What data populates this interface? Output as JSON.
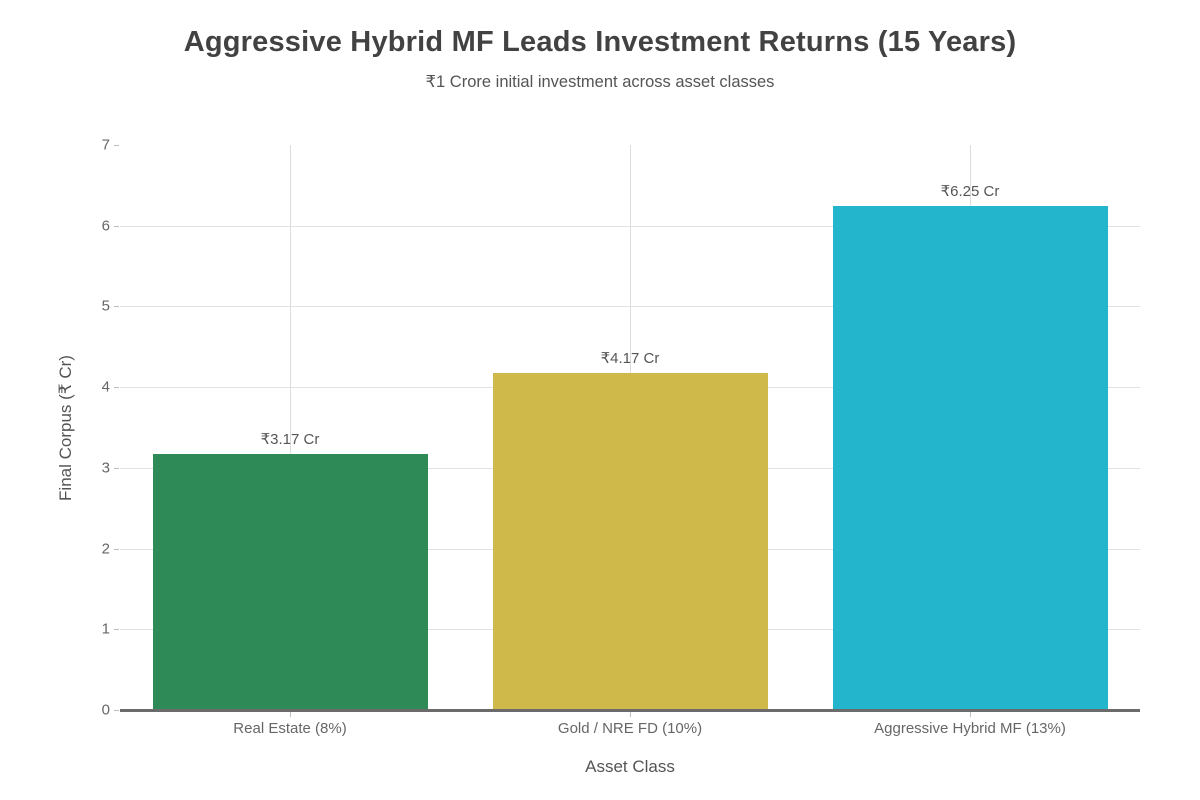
{
  "header": {
    "title": "Aggressive Hybrid MF Leads Investment Returns (15 Years)",
    "subtitle": "₹1 Crore initial investment across asset classes"
  },
  "chart_data": {
    "type": "bar",
    "title": "Aggressive Hybrid MF Leads Investment Returns (15 Years)",
    "subtitle": "₹1 Crore initial investment across asset classes",
    "categories": [
      "Real Estate (8%)",
      "Gold / NRE FD (10%)",
      "Aggressive Hybrid MF (13%)"
    ],
    "values": [
      3.17,
      4.17,
      6.25
    ],
    "value_labels": [
      "₹3.17 Cr",
      "₹4.17 Cr",
      "₹6.25 Cr"
    ],
    "bar_colors": [
      "#2e8b57",
      "#cfb94a",
      "#22b5cb"
    ],
    "xlabel": "Asset Class",
    "ylabel": "Final Corpus (₹ Cr)",
    "ylim": [
      0,
      7
    ],
    "yticks": [
      0,
      1,
      2,
      3,
      4,
      5,
      6,
      7
    ],
    "grid": true,
    "gridline_values_horizontal": [
      1,
      2,
      3,
      4,
      5,
      6
    ],
    "legend_position": "none"
  }
}
